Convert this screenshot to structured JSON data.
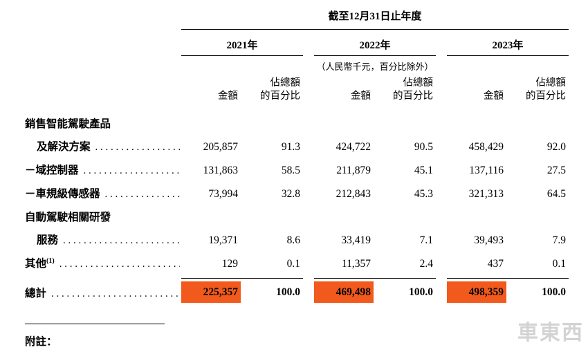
{
  "page": {
    "footnote_label": "附註：",
    "watermark": "車東西"
  },
  "table": {
    "period_header": "截至12月31日止年度",
    "unit_note": "（人民幣千元，百分比除外）",
    "years": [
      "2021年",
      "2022年",
      "2023年"
    ],
    "columns": {
      "amount": "金額",
      "pct_line1": "佔總額",
      "pct_line2": "的百分比"
    },
    "highlight_color": "#f2591c",
    "rows": [
      {
        "label": "銷售智能駕駛產品"
      },
      {
        "label": "及解決方案",
        "values": [
          "205,857",
          "91.3",
          "424,722",
          "90.5",
          "458,429",
          "92.0"
        ]
      },
      {
        "label": "－域控制器",
        "values": [
          "131,863",
          "58.5",
          "211,879",
          "45.1",
          "137,116",
          "27.5"
        ]
      },
      {
        "label": "－車規級傳感器",
        "values": [
          "73,994",
          "32.8",
          "212,843",
          "45.3",
          "321,313",
          "64.5"
        ]
      },
      {
        "label": "自動駕駛相關研發"
      },
      {
        "label": "服務",
        "values": [
          "19,371",
          "8.6",
          "33,419",
          "7.1",
          "39,493",
          "7.9"
        ]
      },
      {
        "label": "其他",
        "sup": "(1)",
        "values": [
          "129",
          "0.1",
          "11,357",
          "2.4",
          "437",
          "0.1"
        ]
      },
      {
        "label": "總計",
        "values": [
          "225,357",
          "100.0",
          "469,498",
          "100.0",
          "498,359",
          "100.0"
        ]
      }
    ]
  }
}
